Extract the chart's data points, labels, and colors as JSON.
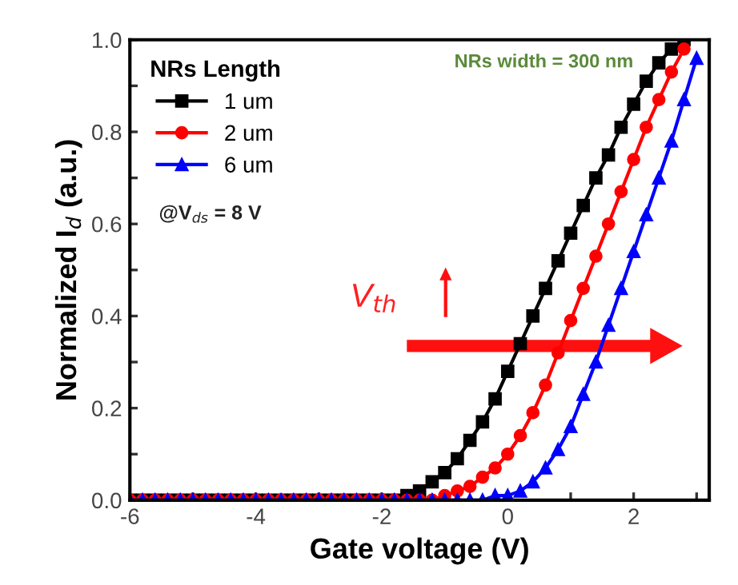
{
  "chart_data": {
    "type": "line",
    "xlabel": "Gate voltage (V)",
    "ylabel": "Normalized I$_{d}$ (a.u.)",
    "legend_title": "NRs Length",
    "legend": "top left",
    "line_style": "solid",
    "grid": false,
    "xlim": [
      -6,
      3.2
    ],
    "ylim": [
      0,
      1
    ],
    "xticks": [
      -6,
      {
        "value": -5,
        "label": null
      },
      -4,
      {
        "value": -3,
        "label": null
      },
      -2,
      {
        "value": -1,
        "label": null
      },
      0,
      {
        "value": 1,
        "label": null
      },
      2,
      {
        "value": 3,
        "label": null
      }
    ],
    "yticks": [
      {
        "value": 0,
        "label": "0.0"
      },
      {
        "value": 0.1,
        "label": null
      },
      0.2,
      {
        "value": 0.3,
        "label": null
      },
      0.4,
      {
        "value": 0.5,
        "label": null
      },
      0.6,
      {
        "value": 0.7,
        "label": null
      },
      0.8,
      {
        "value": 0.9,
        "label": null
      },
      {
        "value": 1,
        "label": "1.0"
      }
    ],
    "annotations": [
      "NRs width = 300 nm",
      "@V$_{ds}$ = 8 V",
      "V$_{th}$"
    ],
    "series": [
      {
        "name": "1 um",
        "color": "#000000",
        "marker": "square",
        "x": [
          -6,
          -5.8,
          -5.6,
          -5.4,
          -5.2,
          -5,
          -4.8,
          -4.6,
          -4.4,
          -4.2,
          -4,
          -3.8,
          -3.6,
          -3.4,
          -3.2,
          -3,
          -2.8,
          -2.6,
          -2.4,
          -2.2,
          -2,
          -1.8,
          -1.6,
          -1.4,
          -1.2,
          -1,
          -0.8,
          -0.6,
          -0.4,
          -0.2,
          0,
          0.2,
          0.4,
          0.6,
          0.8,
          1,
          1.2,
          1.4,
          1.6,
          1.8,
          2,
          2.2,
          2.4,
          2.6,
          2.8
        ],
        "values": [
          0,
          0,
          0,
          0,
          0,
          0,
          0,
          0,
          0,
          0,
          0,
          0,
          0,
          0,
          0,
          0,
          0,
          0,
          0,
          0,
          0,
          0,
          0.01,
          0.02,
          0.04,
          0.06,
          0.09,
          0.13,
          0.17,
          0.22,
          0.28,
          0.34,
          0.4,
          0.46,
          0.52,
          0.58,
          0.64,
          0.7,
          0.75,
          0.81,
          0.86,
          0.91,
          0.95,
          0.98,
          1.0
        ]
      },
      {
        "name": "2 um",
        "color": "#ff0000",
        "marker": "circle",
        "x": [
          -6,
          -5.8,
          -5.6,
          -5.4,
          -5.2,
          -5,
          -4.8,
          -4.6,
          -4.4,
          -4.2,
          -4,
          -3.8,
          -3.6,
          -3.4,
          -3.2,
          -3,
          -2.8,
          -2.6,
          -2.4,
          -2.2,
          -2,
          -1.8,
          -1.6,
          -1.4,
          -1.2,
          -1,
          -0.8,
          -0.6,
          -0.4,
          -0.2,
          0,
          0.2,
          0.4,
          0.6,
          0.8,
          1,
          1.2,
          1.4,
          1.6,
          1.8,
          2,
          2.2,
          2.4,
          2.6,
          2.8
        ],
        "values": [
          0,
          0,
          0,
          0,
          0,
          0,
          0,
          0,
          0,
          0,
          0,
          0,
          0,
          0,
          0,
          0,
          0,
          0,
          0,
          0,
          0,
          0,
          0,
          0,
          0,
          0.01,
          0.02,
          0.03,
          0.05,
          0.07,
          0.1,
          0.14,
          0.19,
          0.25,
          0.32,
          0.39,
          0.46,
          0.53,
          0.6,
          0.67,
          0.74,
          0.81,
          0.87,
          0.93,
          0.98
        ]
      },
      {
        "name": "6 um",
        "color": "#0000ff",
        "marker": "triangle",
        "x": [
          -6,
          -5.8,
          -5.6,
          -5.4,
          -5.2,
          -5,
          -4.8,
          -4.6,
          -4.4,
          -4.2,
          -4,
          -3.8,
          -3.6,
          -3.4,
          -3.2,
          -3,
          -2.8,
          -2.6,
          -2.4,
          -2.2,
          -2,
          -1.8,
          -1.6,
          -1.4,
          -1.2,
          -1,
          -0.8,
          -0.6,
          -0.4,
          -0.2,
          0,
          0.2,
          0.4,
          0.6,
          0.8,
          1,
          1.2,
          1.4,
          1.6,
          1.8,
          2,
          2.2,
          2.4,
          2.6,
          2.8,
          3
        ],
        "values": [
          0,
          0,
          0,
          0,
          0,
          0,
          0,
          0,
          0,
          0,
          0,
          0,
          0,
          0,
          0,
          0,
          0,
          0,
          0,
          0,
          0,
          0,
          0,
          0,
          0,
          0,
          0,
          0,
          0,
          0.01,
          0.01,
          0.02,
          0.04,
          0.07,
          0.11,
          0.16,
          0.23,
          0.3,
          0.38,
          0.46,
          0.54,
          0.62,
          0.7,
          0.78,
          0.87,
          0.96
        ]
      }
    ]
  }
}
